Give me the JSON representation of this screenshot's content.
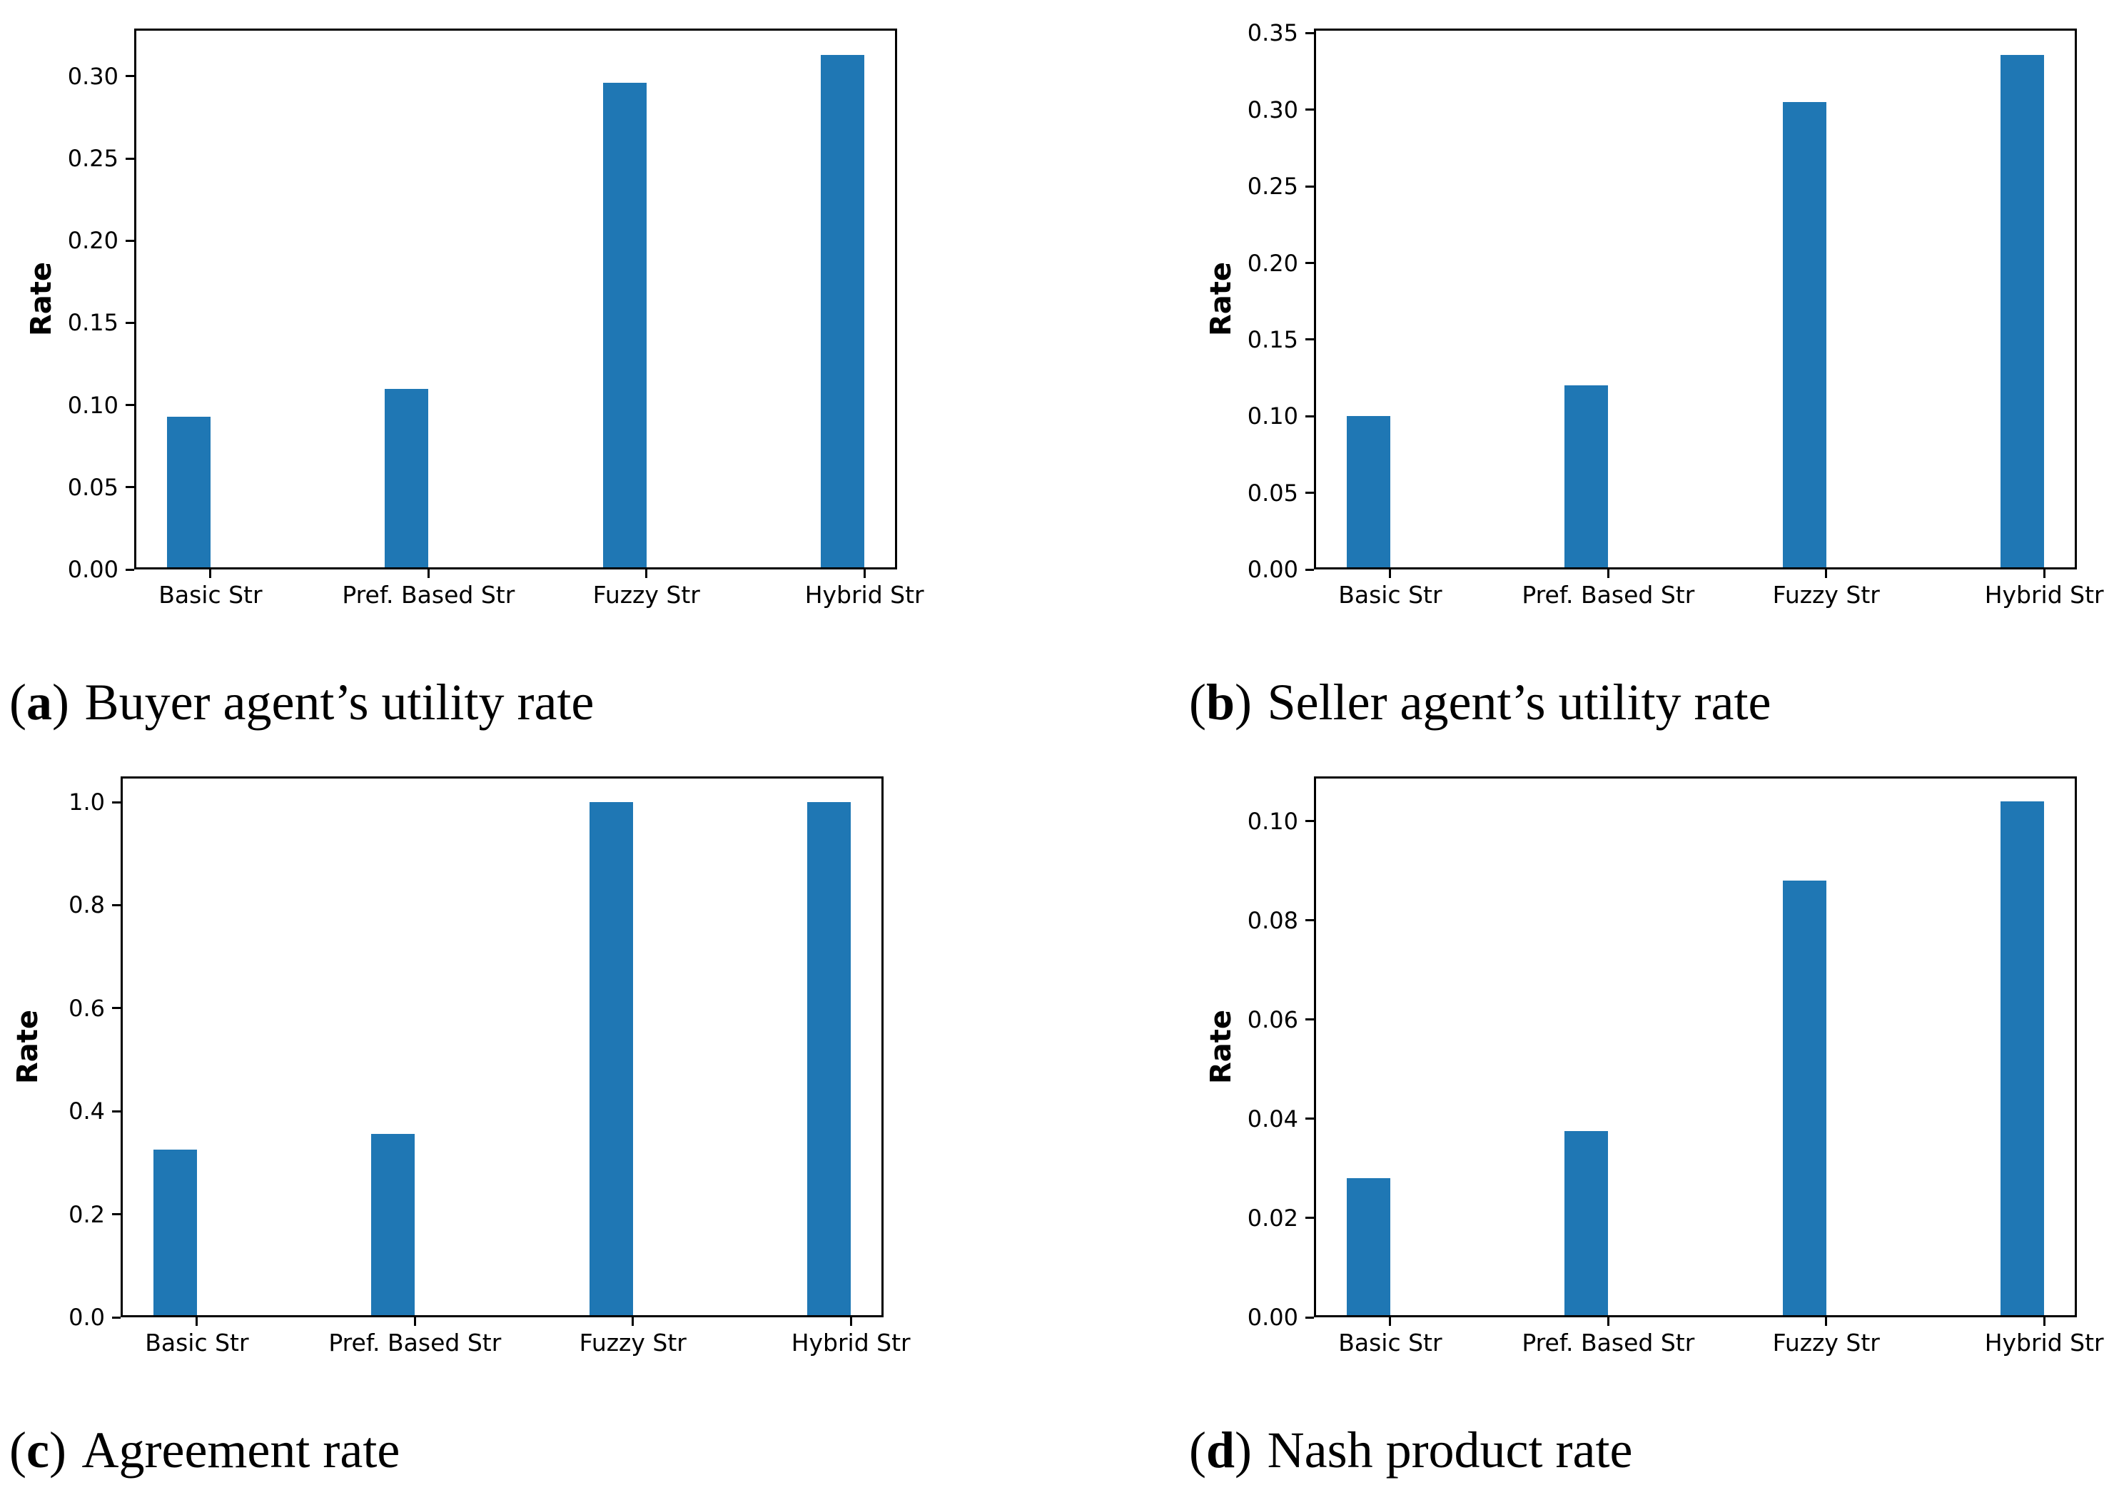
{
  "figure": {
    "background": "#ffffff",
    "text_color": "#000000"
  },
  "chart_data": [
    {
      "id": "a",
      "type": "bar",
      "caption": {
        "letter": "a",
        "text": "Buyer agent’s utility rate"
      },
      "ylabel": "Rate",
      "xlabel": "",
      "categories": [
        "Basic Str",
        "Pref. Based Str",
        "Fuzzy Str",
        "Hybrid Str"
      ],
      "values": [
        0.093,
        0.11,
        0.296,
        0.313
      ],
      "yticks": [
        "0.00",
        "0.05",
        "0.10",
        "0.15",
        "0.20",
        "0.25",
        "0.30"
      ],
      "ytick_values": [
        0,
        0.05,
        0.1,
        0.15,
        0.2,
        0.25,
        0.3
      ],
      "ylim": [
        0,
        0.329
      ],
      "xlim": [
        -0.35,
        3.15
      ],
      "bar_width_fraction": 0.2,
      "bar_color": "#1f77b4",
      "grid": false,
      "legend": null
    },
    {
      "id": "b",
      "type": "bar",
      "caption": {
        "letter": "b",
        "text": "Seller agent’s utility rate"
      },
      "ylabel": "Rate",
      "xlabel": "",
      "categories": [
        "Basic Str",
        "Pref. Based Str",
        "Fuzzy Str",
        "Hybrid Str"
      ],
      "values": [
        0.1,
        0.12,
        0.305,
        0.336
      ],
      "yticks": [
        "0.00",
        "0.05",
        "0.10",
        "0.15",
        "0.20",
        "0.25",
        "0.30",
        "0.35"
      ],
      "ytick_values": [
        0,
        0.05,
        0.1,
        0.15,
        0.2,
        0.25,
        0.3,
        0.35
      ],
      "ylim": [
        0,
        0.353
      ],
      "xlim": [
        -0.35,
        3.15
      ],
      "bar_width_fraction": 0.2,
      "bar_color": "#1f77b4",
      "grid": false,
      "legend": null
    },
    {
      "id": "c",
      "type": "bar",
      "caption": {
        "letter": "c",
        "text": "Agreement rate"
      },
      "ylabel": "Rate",
      "xlabel": "",
      "categories": [
        "Basic Str",
        "Pref. Based Str",
        "Fuzzy Str",
        "Hybrid Str"
      ],
      "values": [
        0.326,
        0.356,
        1.0,
        1.0
      ],
      "yticks": [
        "0.0",
        "0.2",
        "0.4",
        "0.6",
        "0.8",
        "1.0"
      ],
      "ytick_values": [
        0,
        0.2,
        0.4,
        0.6,
        0.8,
        1.0
      ],
      "ylim": [
        0,
        1.05
      ],
      "xlim": [
        -0.35,
        3.15
      ],
      "bar_width_fraction": 0.2,
      "bar_color": "#1f77b4",
      "grid": false,
      "legend": null
    },
    {
      "id": "d",
      "type": "bar",
      "caption": {
        "letter": "d",
        "text": "Nash product rate"
      },
      "ylabel": "Rate",
      "xlabel": "",
      "categories": [
        "Basic Str",
        "Pref. Based Str",
        "Fuzzy Str",
        "Hybrid Str"
      ],
      "values": [
        0.028,
        0.0375,
        0.088,
        0.104
      ],
      "yticks": [
        "0.00",
        "0.02",
        "0.04",
        "0.06",
        "0.08",
        "0.10"
      ],
      "ytick_values": [
        0,
        0.02,
        0.04,
        0.06,
        0.08,
        0.1
      ],
      "ylim": [
        0,
        0.109
      ],
      "xlim": [
        -0.35,
        3.15
      ],
      "bar_width_fraction": 0.2,
      "bar_color": "#1f77b4",
      "grid": false,
      "legend": null
    }
  ]
}
